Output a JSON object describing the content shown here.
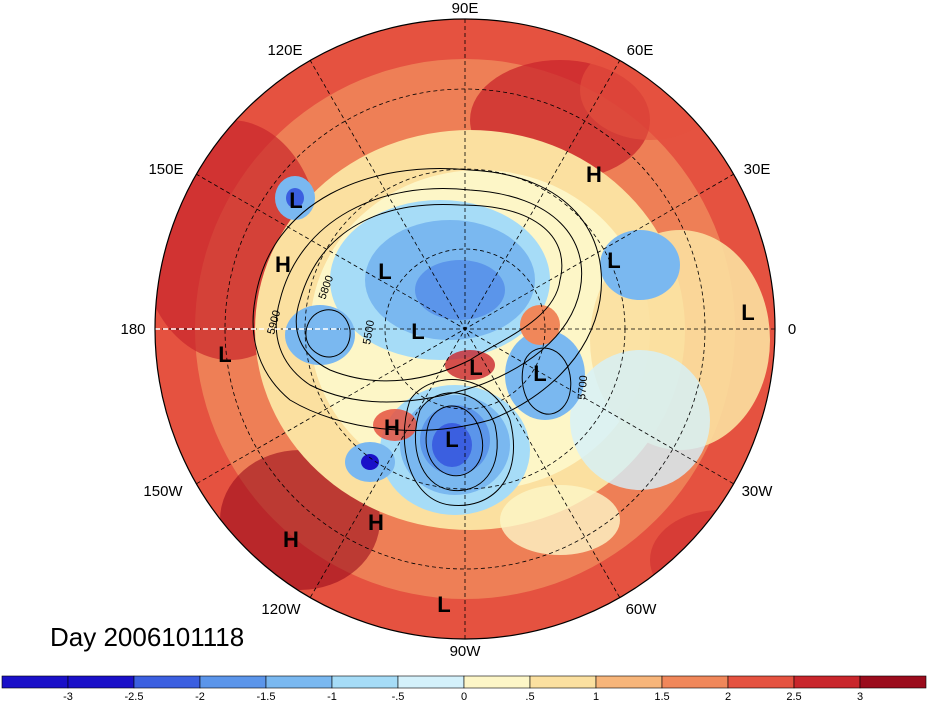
{
  "title": "Day 2006101118",
  "longitude_labels": {
    "e90": "90E",
    "e60": "60E",
    "e30": "30E",
    "e0": "0",
    "w30": "30W",
    "w60": "60W",
    "w90": "90W",
    "w120": "120W",
    "w150": "150W",
    "w180": "180",
    "e150": "150E",
    "e120": "120E"
  },
  "pressure_markers": [
    {
      "name": "H",
      "label": "H"
    },
    {
      "name": "L",
      "label": "L"
    }
  ],
  "contour_labels": {
    "c5800": "5800",
    "c5900": "5900",
    "c5500": "5500",
    "c5700": "5700"
  },
  "colorbar": {
    "ticks": [
      "-3",
      "-2.5",
      "-2",
      "-1.5",
      "-1",
      "-.5",
      "0",
      ".5",
      "1",
      "1.5",
      "2",
      "2.5",
      "3"
    ],
    "colors": [
      "#1a10c8",
      "#3b5fe0",
      "#5b95ea",
      "#7ab8f0",
      "#a6dcf7",
      "#d4f1fb",
      "#fdf6c7",
      "#fbe0a0",
      "#f7b57a",
      "#f0875a",
      "#e55240",
      "#c9262c",
      "#9b0c1c"
    ]
  },
  "colors": {
    "strong_warm": "#c9262c",
    "warm": "#f0875a",
    "neutral": "#fdf6c7",
    "cool": "#7ab8f0",
    "strong_cool": "#1a10c8"
  }
}
